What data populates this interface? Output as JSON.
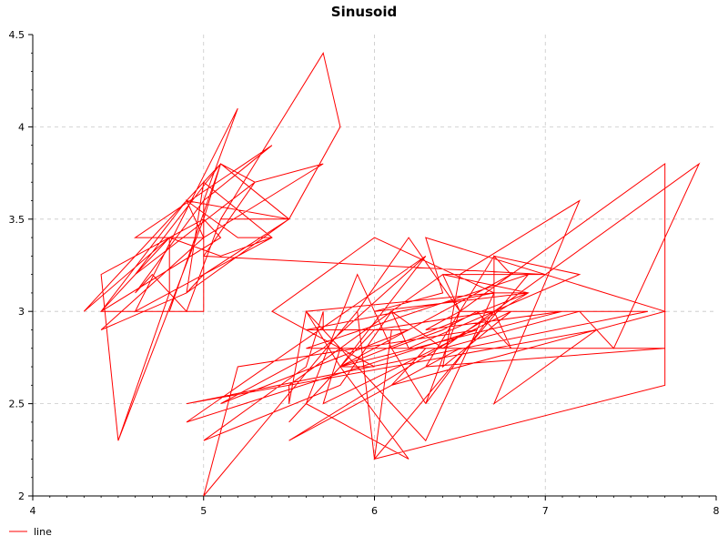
{
  "chart_data": {
    "type": "line",
    "title": "Sinusoid",
    "xlabel": "",
    "ylabel": "",
    "xlim": [
      4,
      8
    ],
    "ylim": [
      2,
      4.5
    ],
    "x_ticks": [
      "4",
      "5",
      "6",
      "7",
      "8"
    ],
    "y_ticks": [
      "2",
      "2.5",
      "3",
      "3.5",
      "4",
      "4.5"
    ],
    "grid": true,
    "legend_position": "bottom-left",
    "series": [
      {
        "name": "line",
        "color": "#ff0000",
        "x": [
          5.1,
          4.9,
          4.7,
          4.6,
          5.0,
          5.4,
          4.6,
          5.0,
          4.4,
          4.9,
          5.0,
          5.4,
          4.6,
          5.2,
          5.0,
          5.0,
          4.4,
          4.8,
          4.3,
          5.1,
          5.3,
          5.7,
          5.0,
          4.9,
          5.2,
          5.4,
          5.1,
          4.8,
          4.8,
          4.5,
          4.4,
          5.0,
          5.1,
          5.5,
          5.8,
          5.7,
          5.1,
          5.2,
          5.5,
          4.9,
          5.0,
          5.5,
          4.9,
          4.4,
          5.1,
          5.0,
          4.5,
          4.4,
          5.0,
          5.1,
          4.8,
          5.1,
          4.6,
          5.3,
          5.0,
          7.0,
          6.4,
          6.9,
          5.5,
          6.5,
          5.7,
          6.3,
          4.9,
          6.6,
          5.2,
          5.0,
          5.9,
          6.0,
          6.1,
          5.6,
          6.7,
          5.6,
          5.8,
          6.2,
          5.6,
          5.9,
          6.1,
          6.3,
          6.1,
          6.4,
          6.6,
          6.8,
          6.7,
          6.0,
          5.7,
          5.5,
          5.5,
          5.8,
          6.0,
          5.4,
          6.0,
          6.7,
          6.3,
          5.6,
          5.5,
          5.5,
          6.1,
          5.8,
          5.0,
          5.6,
          5.7,
          5.7,
          6.2,
          5.1,
          5.7,
          6.3,
          5.8,
          7.1,
          6.3,
          6.5,
          7.6,
          4.9,
          7.3,
          6.7,
          7.2,
          6.5,
          6.4,
          6.8,
          5.7,
          5.8,
          6.4,
          6.5,
          7.7,
          7.7,
          6.0,
          6.9,
          5.6,
          7.7,
          6.3,
          6.7,
          7.2,
          6.2,
          6.1,
          6.4,
          7.2,
          7.4,
          7.9,
          6.4,
          6.3,
          6.1,
          7.7,
          6.3,
          6.4,
          6.0,
          6.9,
          6.7,
          6.9,
          5.8,
          6.8,
          6.7,
          6.7,
          6.3,
          6.5,
          6.2,
          5.9
        ],
        "y": [
          3.5,
          3.0,
          3.2,
          3.1,
          3.6,
          3.9,
          3.4,
          3.4,
          2.9,
          3.1,
          3.7,
          3.4,
          3.0,
          4.1,
          3.6,
          3.0,
          3.0,
          3.4,
          3.0,
          3.8,
          3.7,
          3.8,
          3.4,
          3.6,
          3.4,
          3.4,
          3.3,
          3.4,
          3.1,
          2.3,
          3.2,
          3.5,
          3.8,
          3.5,
          4.0,
          4.4,
          3.5,
          3.5,
          3.5,
          3.1,
          3.2,
          3.5,
          3.6,
          3.0,
          3.4,
          3.5,
          2.3,
          3.2,
          3.5,
          3.8,
          3.0,
          3.8,
          3.2,
          3.7,
          3.3,
          3.2,
          3.2,
          3.1,
          2.3,
          2.8,
          2.8,
          3.3,
          2.4,
          2.9,
          2.7,
          2.0,
          3.0,
          2.2,
          2.9,
          2.9,
          3.1,
          3.0,
          2.7,
          2.2,
          2.5,
          3.2,
          2.8,
          2.5,
          2.8,
          2.9,
          3.0,
          2.8,
          3.0,
          2.9,
          2.6,
          2.4,
          2.4,
          2.7,
          2.7,
          3.0,
          3.4,
          3.1,
          2.3,
          3.0,
          2.5,
          2.6,
          3.0,
          2.6,
          2.3,
          2.7,
          3.0,
          2.9,
          2.9,
          2.5,
          2.8,
          3.3,
          2.7,
          3.0,
          2.9,
          3.0,
          3.0,
          2.5,
          2.9,
          2.5,
          3.6,
          3.2,
          2.7,
          3.0,
          2.5,
          2.8,
          3.2,
          3.0,
          3.8,
          2.6,
          2.2,
          3.2,
          2.8,
          2.8,
          2.7,
          3.3,
          3.2,
          2.8,
          3.0,
          2.8,
          3.0,
          2.8,
          3.8,
          2.8,
          2.8,
          2.6,
          3.0,
          3.4,
          3.1,
          3.0,
          3.1,
          3.1,
          3.1,
          2.7,
          3.2,
          3.3,
          3.0,
          2.5,
          3.0,
          3.4,
          3.0
        ]
      }
    ]
  }
}
